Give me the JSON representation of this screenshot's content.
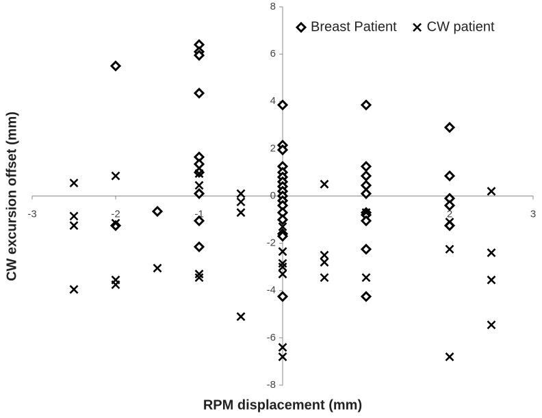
{
  "chart_data": {
    "type": "scatter",
    "xlabel": "RPM displacement (mm)",
    "ylabel": "CW excursion offset (mm)",
    "xlim": [
      -3,
      3
    ],
    "ylim": [
      -8,
      8
    ],
    "xticks": [
      -3,
      -2,
      -1,
      1,
      2,
      3
    ],
    "yticks": [
      -8,
      -6,
      -4,
      -2,
      0,
      2,
      4,
      6,
      8
    ],
    "grid": false,
    "legend": "upper right",
    "series": [
      {
        "name": "Breast Patient",
        "marker": "diamond",
        "color": "#000000",
        "x": [
          -2,
          -2,
          -1.5,
          -1,
          -1,
          -1,
          -1,
          -1,
          -1,
          -1,
          -1,
          -1,
          -1,
          0,
          0,
          0,
          0,
          0,
          0,
          0,
          0,
          0,
          0,
          0,
          0,
          0,
          0,
          0,
          0,
          0,
          1,
          1,
          1,
          1,
          1,
          1,
          1,
          1,
          1,
          1,
          2,
          2,
          2,
          2,
          2
        ],
        "values": [
          5.5,
          -1.25,
          -0.65,
          6.4,
          6.1,
          5.95,
          4.35,
          1.65,
          1.35,
          1.0,
          0.1,
          -1.05,
          -2.15,
          3.85,
          2.15,
          1.95,
          1.25,
          1.0,
          0.8,
          0.6,
          0.4,
          0.2,
          0.0,
          -0.2,
          -0.4,
          -0.7,
          -1.0,
          -1.6,
          -1.7,
          -4.25,
          3.85,
          1.25,
          0.85,
          0.45,
          0.1,
          -0.7,
          -0.8,
          -1.05,
          -2.25,
          -4.25,
          2.9,
          0.85,
          -0.1,
          -0.4,
          -1.25
        ]
      },
      {
        "name": "CW patient",
        "marker": "x",
        "color": "#000000",
        "x": [
          -2.5,
          -2.5,
          -2.5,
          -2.5,
          -2,
          -2,
          -2,
          -2,
          -1.5,
          -1,
          -1,
          -1,
          -1,
          -0.5,
          -0.5,
          -0.5,
          -0.5,
          0,
          0,
          0,
          0,
          0,
          0,
          0,
          0.5,
          0.5,
          0.5,
          0.5,
          1,
          1,
          2,
          2,
          2,
          2.5,
          2.5,
          2.5,
          2.5
        ],
        "values": [
          0.55,
          -0.85,
          -1.25,
          -3.95,
          0.85,
          -1.15,
          -3.55,
          -3.75,
          -3.05,
          0.95,
          0.45,
          -3.3,
          -3.45,
          0.1,
          -0.25,
          -0.7,
          -5.1,
          -1.3,
          -2.35,
          -2.85,
          -3.0,
          -3.3,
          -6.4,
          -6.8,
          0.5,
          -2.5,
          -2.8,
          -3.45,
          -0.7,
          -3.45,
          -1.1,
          -2.25,
          -6.8,
          0.2,
          -2.4,
          -3.55,
          -5.45
        ]
      }
    ]
  }
}
